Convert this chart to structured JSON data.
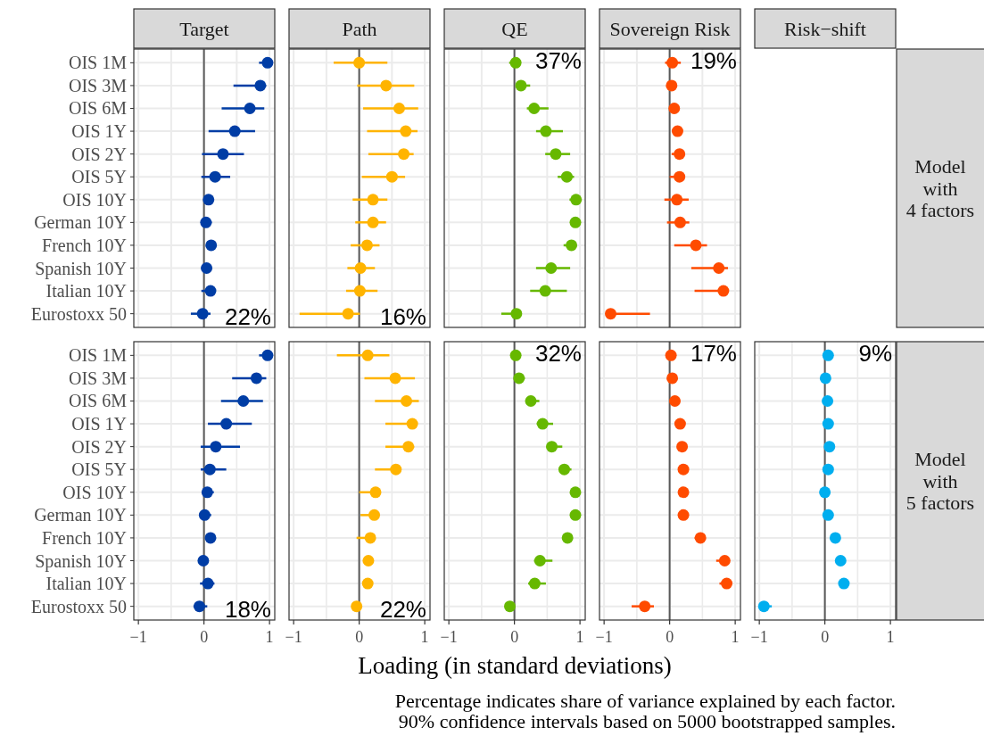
{
  "chart_data": [
    {
      "type": "scatter",
      "title": "Target",
      "orientation": "horizontal",
      "color": "#003DA5",
      "marker": "circle",
      "grid": true,
      "tick_labels": "y",
      "categories": [
        "OIS 1M",
        "OIS 3M",
        "OIS 6M",
        "OIS 1Y",
        "OIS 2Y",
        "OIS 5Y",
        "OIS 10Y",
        "German 10Y",
        "French 10Y",
        "Spanish 10Y",
        "Italian 10Y",
        "Eurostoxx 50"
      ],
      "values": [
        0.97,
        0.86,
        0.7,
        0.47,
        0.29,
        0.17,
        0.07,
        0.03,
        0.11,
        0.04,
        0.1,
        -0.02
      ],
      "errors": [
        [
          0.84,
          1.0
        ],
        [
          0.45,
          0.95
        ],
        [
          0.27,
          0.92
        ],
        [
          0.07,
          0.78
        ],
        [
          -0.03,
          0.61
        ],
        [
          -0.04,
          0.4
        ],
        null,
        [
          -0.01,
          0.12
        ],
        null,
        [
          -0.04,
          0.09
        ],
        [
          -0.04,
          0.15
        ],
        [
          -0.2,
          0.1
        ]
      ],
      "xlim": [
        -1.07,
        1.08
      ],
      "xticks": [
        -1,
        -0.5,
        0,
        0.5,
        1
      ],
      "ref_lines": [
        {
          "axis": "x",
          "value": 0,
          "color": "#595959"
        }
      ],
      "annotations": [
        "22%"
      ]
    },
    {
      "type": "scatter",
      "title": "Path",
      "orientation": "horizontal",
      "color": "#FFB400",
      "marker": "circle",
      "grid": true,
      "tick_labels": false,
      "categories": [
        null,
        null,
        null,
        null,
        null,
        null,
        null,
        null,
        null,
        null,
        null,
        null
      ],
      "values": [
        0.0,
        0.41,
        0.61,
        0.71,
        0.68,
        0.5,
        0.21,
        0.21,
        0.12,
        0.02,
        0.01,
        -0.17
      ],
      "errors": [
        [
          -0.39,
          0.43
        ],
        [
          -0.03,
          0.84
        ],
        [
          0.06,
          0.9
        ],
        [
          0.12,
          0.89
        ],
        [
          0.14,
          0.83
        ],
        [
          0.04,
          0.7
        ],
        [
          -0.1,
          0.43
        ],
        [
          -0.06,
          0.41
        ],
        [
          -0.13,
          0.31
        ],
        [
          -0.18,
          0.24
        ],
        [
          -0.2,
          0.28
        ],
        [
          -0.91,
          0.01
        ]
      ],
      "xlim": [
        -1.07,
        1.08
      ],
      "xticks": [
        -1,
        -0.5,
        0,
        0.5,
        1
      ],
      "ref_lines": [
        {
          "axis": "x",
          "value": 0,
          "color": "#595959"
        }
      ],
      "annotations": [
        "16%"
      ]
    },
    {
      "type": "scatter",
      "title": "QE",
      "orientation": "horizontal",
      "color": "#66B800",
      "marker": "circle",
      "grid": true,
      "tick_labels": false,
      "categories": [
        null,
        null,
        null,
        null,
        null,
        null,
        null,
        null,
        null,
        null,
        null,
        null
      ],
      "values": [
        0.02,
        0.1,
        0.3,
        0.48,
        0.63,
        0.8,
        0.94,
        0.93,
        0.87,
        0.56,
        0.47,
        0.03
      ],
      "errors": [
        [
          -0.08,
          0.06
        ],
        [
          0.02,
          0.24
        ],
        [
          0.19,
          0.52
        ],
        [
          0.33,
          0.74
        ],
        [
          0.47,
          0.85
        ],
        [
          0.66,
          0.91
        ],
        [
          0.84,
          1.0
        ],
        null,
        [
          0.75,
          0.95
        ],
        [
          0.33,
          0.85
        ],
        [
          0.24,
          0.8
        ],
        [
          -0.2,
          0.1
        ]
      ],
      "xlim": [
        -1.07,
        1.08
      ],
      "xticks": [
        -1,
        -0.5,
        0,
        0.5,
        1
      ],
      "ref_lines": [
        {
          "axis": "x",
          "value": 0,
          "color": "#595959"
        }
      ],
      "annotations": [
        "37%"
      ]
    },
    {
      "type": "scatter",
      "title": "Sovereign Risk",
      "orientation": "horizontal",
      "color": "#FF4B00",
      "marker": "circle",
      "grid": true,
      "tick_labels": false,
      "y2label": "Model\nwith\n4 factors",
      "categories": [
        null,
        null,
        null,
        null,
        null,
        null,
        null,
        null,
        null,
        null,
        null,
        null
      ],
      "values": [
        0.04,
        0.03,
        0.07,
        0.12,
        0.15,
        0.15,
        0.11,
        0.16,
        0.4,
        0.75,
        0.82,
        -0.9
      ],
      "errors": [
        [
          -0.07,
          0.17
        ],
        null,
        null,
        null,
        [
          0.03,
          0.22
        ],
        [
          0.0,
          0.22
        ],
        [
          -0.08,
          0.29
        ],
        [
          -0.04,
          0.3
        ],
        [
          0.07,
          0.57
        ],
        [
          0.33,
          0.89
        ],
        [
          0.38,
          0.9
        ],
        [
          -0.97,
          -0.3
        ]
      ],
      "xlim": [
        -1.07,
        1.08
      ],
      "xticks": [
        -1,
        -0.5,
        0,
        0.5,
        1
      ],
      "ref_lines": [
        {
          "axis": "x",
          "value": 0,
          "color": "#595959"
        }
      ],
      "annotations": [
        "19%"
      ]
    },
    {
      "type": "scatter",
      "orientation": "horizontal",
      "color": "#003DA5",
      "marker": "circle",
      "grid": true,
      "categories": [
        "OIS 1M",
        "OIS 3M",
        "OIS 6M",
        "OIS 1Y",
        "OIS 2Y",
        "OIS 5Y",
        "OIS 10Y",
        "German 10Y",
        "French 10Y",
        "Spanish 10Y",
        "Italian 10Y",
        "Eurostoxx 50"
      ],
      "values": [
        0.97,
        0.8,
        0.6,
        0.34,
        0.18,
        0.09,
        0.05,
        0.01,
        0.1,
        -0.01,
        0.06,
        -0.07
      ],
      "errors": [
        [
          0.84,
          1.0
        ],
        [
          0.43,
          0.95
        ],
        [
          0.26,
          0.9
        ],
        [
          0.06,
          0.73
        ],
        [
          -0.05,
          0.55
        ],
        [
          -0.05,
          0.34
        ],
        [
          -0.02,
          0.15
        ],
        [
          -0.05,
          0.11
        ],
        null,
        null,
        [
          -0.06,
          0.16
        ],
        [
          -0.16,
          0.05
        ]
      ],
      "xlim": [
        -1.07,
        1.08
      ],
      "xticks": [
        {
          "value": -1,
          "label": "−1"
        },
        {
          "value": -0.5,
          "label": null
        },
        0,
        {
          "value": 0.5,
          "label": null
        },
        1
      ],
      "ref_lines": [
        {
          "axis": "x",
          "value": 0,
          "color": "#595959"
        }
      ],
      "annotations": [
        "18%"
      ]
    },
    {
      "type": "scatter",
      "orientation": "horizontal",
      "color": "#FFB400",
      "marker": "circle",
      "grid": true,
      "tick_labels": "x",
      "categories": [
        null,
        null,
        null,
        null,
        null,
        null,
        null,
        null,
        null,
        null,
        null,
        null
      ],
      "values": [
        0.13,
        0.55,
        0.72,
        0.81,
        0.75,
        0.56,
        0.25,
        0.23,
        0.17,
        0.14,
        0.13,
        -0.04
      ],
      "errors": [
        [
          -0.34,
          0.46
        ],
        [
          0.08,
          0.85
        ],
        [
          0.24,
          0.91
        ],
        [
          0.4,
          0.88
        ],
        [
          0.4,
          0.84
        ],
        [
          0.24,
          0.62
        ],
        [
          0.0,
          0.3
        ],
        [
          0.02,
          0.28
        ],
        [
          -0.04,
          0.22
        ],
        null,
        null,
        null
      ],
      "xlim": [
        -1.07,
        1.08
      ],
      "xticks": [
        {
          "value": -1,
          "label": "−1"
        },
        {
          "value": -0.5,
          "label": null
        },
        0,
        {
          "value": 0.5,
          "label": null
        },
        1
      ],
      "ref_lines": [
        {
          "axis": "x",
          "value": 0,
          "color": "#595959"
        }
      ],
      "annotations": [
        "22%"
      ]
    },
    {
      "type": "scatter",
      "orientation": "horizontal",
      "color": "#66B800",
      "marker": "circle",
      "grid": true,
      "tick_labels": "x",
      "xlabel": "Loading (in standard deviations)",
      "categories": [
        null,
        null,
        null,
        null,
        null,
        null,
        null,
        null,
        null,
        null,
        null,
        null
      ],
      "values": [
        0.02,
        0.07,
        0.25,
        0.43,
        0.57,
        0.76,
        0.93,
        0.93,
        0.81,
        0.39,
        0.31,
        -0.07
      ],
      "errors": [
        null,
        [
          0.0,
          0.16
        ],
        [
          0.17,
          0.38
        ],
        [
          0.34,
          0.59
        ],
        [
          0.49,
          0.73
        ],
        [
          0.68,
          0.87
        ],
        null,
        null,
        null,
        [
          0.3,
          0.58
        ],
        [
          0.21,
          0.48
        ],
        null
      ],
      "xlim": [
        -1.07,
        1.08
      ],
      "xticks": [
        {
          "value": -1,
          "label": "−1"
        },
        {
          "value": -0.5,
          "label": null
        },
        0,
        {
          "value": 0.5,
          "label": null
        },
        1
      ],
      "ref_lines": [
        {
          "axis": "x",
          "value": 0,
          "color": "#595959"
        }
      ],
      "annotations": [
        "32%"
      ]
    },
    {
      "type": "scatter",
      "orientation": "horizontal",
      "color": "#FF4B00",
      "marker": "circle",
      "grid": true,
      "tick_labels": "x",
      "categories": [
        null,
        null,
        null,
        null,
        null,
        null,
        null,
        null,
        null,
        null,
        null,
        null
      ],
      "values": [
        0.02,
        0.04,
        0.08,
        0.16,
        0.19,
        0.21,
        0.21,
        0.21,
        0.47,
        0.84,
        0.87,
        -0.38
      ],
      "errors": [
        null,
        null,
        null,
        null,
        null,
        null,
        null,
        null,
        [
          0.38,
          0.53
        ],
        [
          0.71,
          0.9
        ],
        [
          0.76,
          0.93
        ],
        [
          -0.58,
          -0.24
        ]
      ],
      "xlim": [
        -1.07,
        1.08
      ],
      "xticks": [
        {
          "value": -1,
          "label": "−1"
        },
        {
          "value": -0.5,
          "label": null
        },
        0,
        {
          "value": 0.5,
          "label": null
        },
        1
      ],
      "ref_lines": [
        {
          "axis": "x",
          "value": 0,
          "color": "#595959"
        }
      ],
      "annotations": [
        "17%"
      ]
    },
    {
      "type": "scatter",
      "title": "Risk−shift",
      "orientation": "horizontal",
      "color": "#00AEEF",
      "marker": "circle",
      "grid": true,
      "tick_labels": "x",
      "y2label": "Model\nwith\n5 factors",
      "categories": [
        null,
        null,
        null,
        null,
        null,
        null,
        null,
        null,
        null,
        null,
        null,
        null
      ],
      "values": [
        0.05,
        0.01,
        0.04,
        0.05,
        0.07,
        0.05,
        0.0,
        0.05,
        0.16,
        0.24,
        0.29,
        -0.93
      ],
      "errors": [
        null,
        null,
        null,
        null,
        null,
        null,
        null,
        null,
        null,
        [
          0.17,
          0.3
        ],
        [
          0.21,
          0.34
        ],
        [
          -1.0,
          -0.81
        ]
      ],
      "xlim": [
        -1.07,
        1.08
      ],
      "xticks": [
        {
          "value": -1,
          "label": "−1"
        },
        {
          "value": -0.5,
          "label": null
        },
        0,
        {
          "value": 0.5,
          "label": null
        },
        1
      ],
      "ref_lines": [
        {
          "axis": "x",
          "value": 0,
          "color": "#595959"
        }
      ],
      "annotations": [
        "9%",
        "Percentage indicates share of variance explained by each factor.",
        "90% confidence intervals based on 5000 bootstrapped samples."
      ]
    }
  ]
}
